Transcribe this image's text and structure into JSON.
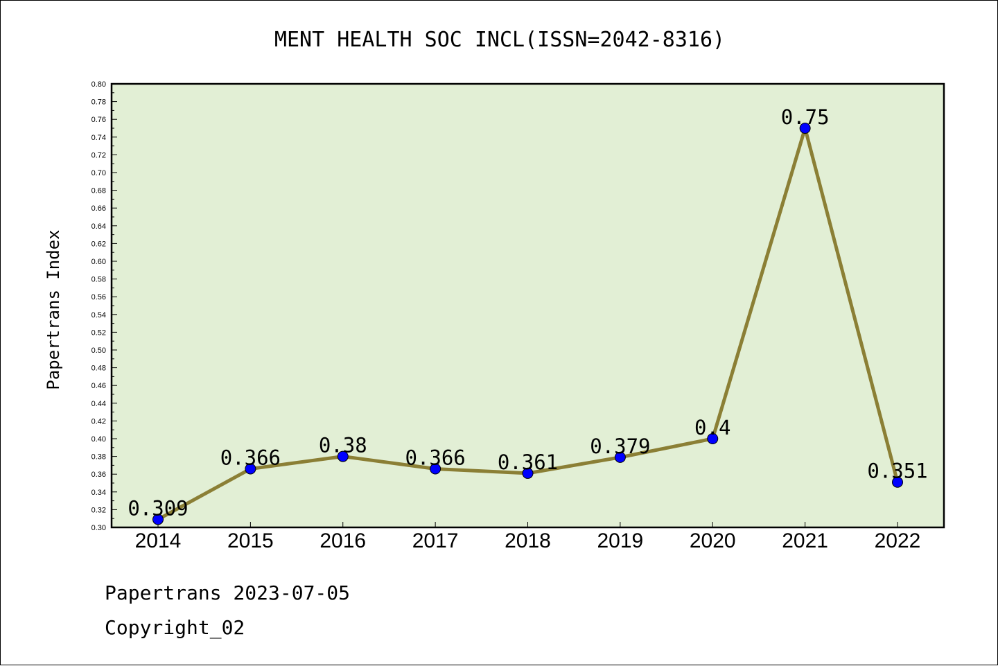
{
  "chart_data": {
    "type": "line",
    "title": "MENT HEALTH SOC INCL(ISSN=2042-8316)",
    "ylabel": "Papertrans Index",
    "xlabel": "",
    "categories": [
      "2014",
      "2015",
      "2016",
      "2017",
      "2018",
      "2019",
      "2020",
      "2021",
      "2022"
    ],
    "values": [
      0.309,
      0.366,
      0.38,
      0.366,
      0.361,
      0.379,
      0.4,
      0.75,
      0.351
    ],
    "data_labels": [
      "0.309",
      "0.366",
      "0.38",
      "0.366",
      "0.361",
      "0.379",
      "0.4",
      "0.75",
      "0.351"
    ],
    "ylim": [
      0.3,
      0.8
    ],
    "ystep": 0.02,
    "grid": false,
    "legend": "none",
    "colors": {
      "plot_background": "#e2efd5",
      "line": "#8b7f35",
      "marker": "#0000ff"
    }
  },
  "footer": {
    "date_line": "Papertrans 2023-07-05",
    "copyright_line": "Copyright_02"
  }
}
